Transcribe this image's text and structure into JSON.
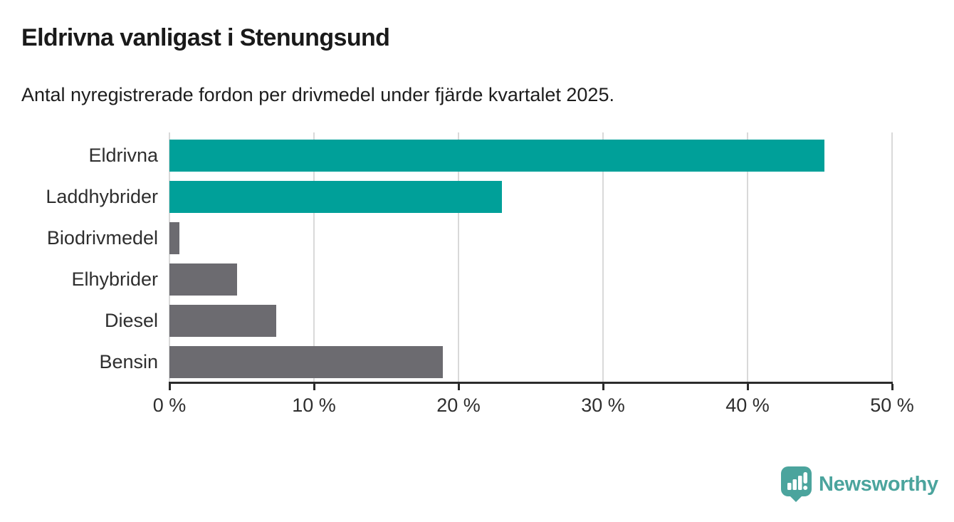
{
  "header": {
    "title": "Eldrivna vanligast i Stenungsund",
    "subtitle": "Antal nyregistrerade fordon per drivmedel under fjärde kvartalet 2025."
  },
  "chart_data": {
    "type": "bar",
    "orientation": "horizontal",
    "title": "Eldrivna vanligast i Stenungsund",
    "subtitle": "Antal nyregistrerade fordon per drivmedel under fjärde kvartalet 2025.",
    "categories": [
      "Eldrivna",
      "Laddhybrider",
      "Biodrivmedel",
      "Elhybrider",
      "Diesel",
      "Bensin"
    ],
    "values": [
      45.3,
      23.0,
      0.7,
      4.7,
      7.4,
      18.9
    ],
    "unit": "%",
    "bar_colors": [
      "#00a099",
      "#00a099",
      "#6c6b70",
      "#6c6b70",
      "#6c6b70",
      "#6c6b70"
    ],
    "xlabel": "",
    "ylabel": "",
    "xlim": [
      0,
      50
    ],
    "x_ticks": [
      0,
      10,
      20,
      30,
      40,
      50
    ],
    "x_tick_labels": [
      "0 %",
      "10 %",
      "20 %",
      "30 %",
      "40 %",
      "50 %"
    ],
    "grid": "vertical",
    "legend": "none"
  },
  "footer": {
    "brand": "Newsworthy",
    "brand_color": "#4ba49d"
  },
  "colors": {
    "highlight_teal": "#00a099",
    "neutral_gray": "#6c6b70",
    "axis": "#2b2b2b",
    "gridline": "#d9d9d9",
    "text": "#1a1a1a",
    "background": "#ffffff"
  }
}
